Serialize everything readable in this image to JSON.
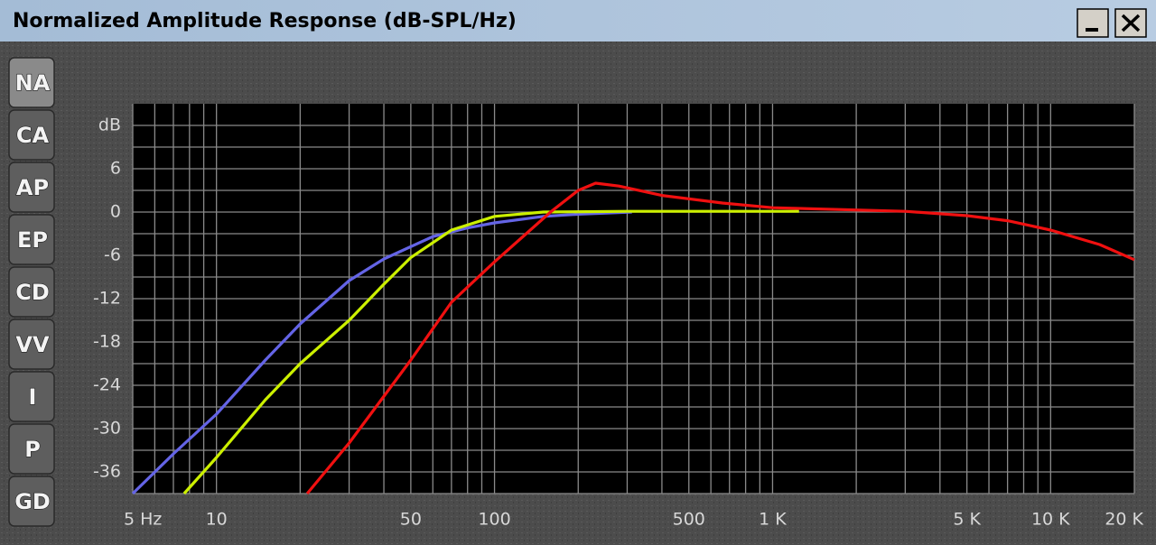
{
  "chart_data": {
    "type": "line",
    "title": "Normalized Amplitude Response (dB-SPL/Hz)",
    "y_label": "dB",
    "xscale": "log",
    "xlim": [
      5,
      20000
    ],
    "ylim": [
      -39,
      15
    ],
    "xticks": [
      {
        "value": 5,
        "label": "5 Hz"
      },
      10,
      50,
      100,
      500,
      {
        "value": 1000,
        "label": "1 K"
      },
      {
        "value": 5000,
        "label": "5 K"
      },
      {
        "value": 10000,
        "label": "10 K"
      },
      {
        "value": 20000,
        "label": "20 K"
      }
    ],
    "xgrid": [
      6,
      7,
      8,
      9,
      20,
      30,
      40,
      60,
      70,
      80,
      90,
      200,
      300,
      400,
      600,
      700,
      800,
      900,
      2000,
      3000,
      4000,
      6000,
      7000,
      8000,
      9000
    ],
    "yticks": [
      6,
      0,
      -6,
      -12,
      -18,
      -24,
      -30,
      -36
    ],
    "ygrid": [
      12,
      9,
      3,
      -3,
      -9,
      -15,
      -21,
      -27,
      -33,
      -39
    ],
    "grid": true,
    "series": [
      {
        "color": "#6464e6",
        "x": [
          5,
          7,
          10,
          15,
          20,
          30,
          40,
          60,
          80,
          100,
          150,
          200,
          312
        ],
        "values": [
          -39,
          -33.5,
          -28,
          -20.5,
          -15.5,
          -9.5,
          -6.5,
          -3.4,
          -2.2,
          -1.5,
          -0.6,
          -0.3,
          0
        ]
      },
      {
        "color": "#ccf000",
        "x": [
          7.65,
          10,
          15,
          20,
          30,
          40,
          50,
          70,
          100,
          150,
          300,
          1245
        ],
        "values": [
          -39,
          -34,
          -26,
          -21,
          -15,
          -10,
          -6.3,
          -2.5,
          -0.6,
          0,
          0.1,
          0.1
        ]
      },
      {
        "color": "#f01010",
        "x": [
          21.2,
          30,
          50,
          70,
          100,
          130,
          159,
          200,
          231,
          280,
          400,
          660,
          1000,
          3000,
          5000,
          7000,
          10000,
          15000,
          20000
        ],
        "values": [
          -39,
          -32,
          -20.5,
          -12.5,
          -6.9,
          -3,
          0,
          3,
          4,
          3.6,
          2.3,
          1.25,
          0.6,
          0.1,
          -0.5,
          -1.2,
          -2.5,
          -4.5,
          -6.6
        ]
      }
    ]
  },
  "tabs": [
    "NA",
    "CA",
    "AP",
    "EP",
    "CD",
    "VV",
    "I",
    "P",
    "GD"
  ]
}
